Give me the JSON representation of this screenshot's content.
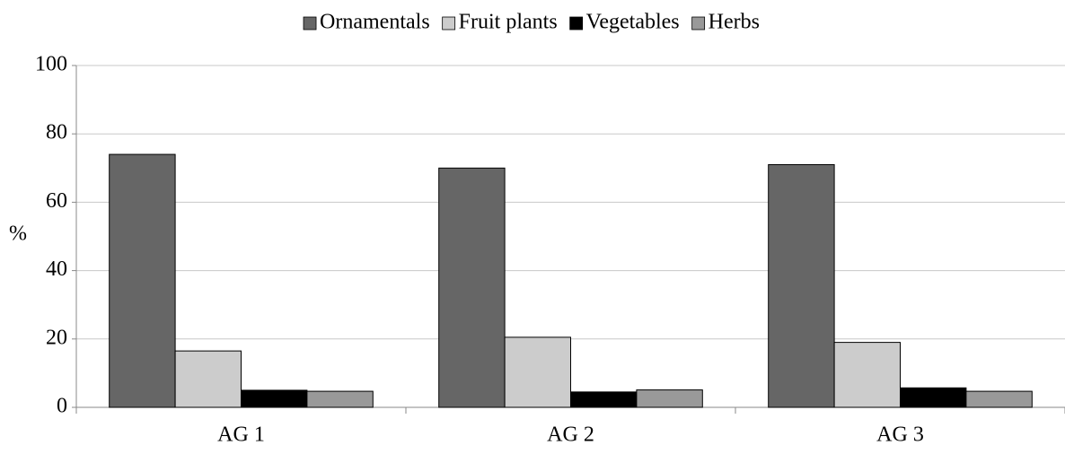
{
  "chart_data": {
    "type": "bar",
    "ylabel": "%",
    "categories": [
      "AG 1",
      "AG 2",
      "AG 3"
    ],
    "series": [
      {
        "name": "Ornamentals",
        "color": "#666666",
        "values": [
          74,
          70,
          71
        ]
      },
      {
        "name": "Fruit plants",
        "color": "#cccccc",
        "values": [
          16.5,
          20.5,
          19
        ]
      },
      {
        "name": "Vegetables",
        "color": "#000000",
        "values": [
          5,
          4.5,
          5.7
        ]
      },
      {
        "name": "Herbs",
        "color": "#999999",
        "values": [
          4.7,
          5.1,
          4.7
        ]
      }
    ],
    "ylim": [
      0,
      100
    ],
    "yticks": [
      0,
      20,
      40,
      60,
      80,
      100
    ],
    "grid": true,
    "legend": "top"
  }
}
